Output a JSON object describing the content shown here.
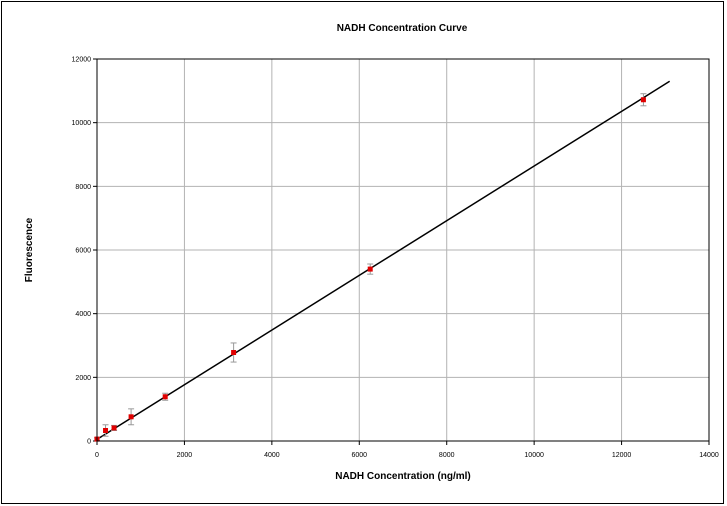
{
  "chart_data": {
    "type": "scatter",
    "title": "NADH Concentration Curve",
    "xlabel": "NADH Concentration (ng/ml)",
    "ylabel": "Fluorescence",
    "xlim": [
      0,
      14000
    ],
    "ylim": [
      0,
      12000
    ],
    "xticks": [
      0,
      2000,
      4000,
      6000,
      8000,
      10000,
      12000,
      14000
    ],
    "yticks": [
      0,
      2000,
      4000,
      6000,
      8000,
      10000,
      12000
    ],
    "grid": true,
    "legend": "none",
    "series": [
      {
        "x": [
          0,
          195,
          390,
          780,
          1560,
          3125,
          6250,
          12500
        ],
        "y": [
          60,
          330,
          410,
          760,
          1390,
          2780,
          5400,
          10720
        ],
        "error": [
          40,
          180,
          80,
          250,
          110,
          300,
          160,
          190
        ],
        "marker_color": "#e00000",
        "errorbar_color": "#999999"
      }
    ],
    "trendline": {
      "x": [
        0,
        13100
      ],
      "y": [
        50,
        11300
      ],
      "color": "#000000"
    }
  }
}
